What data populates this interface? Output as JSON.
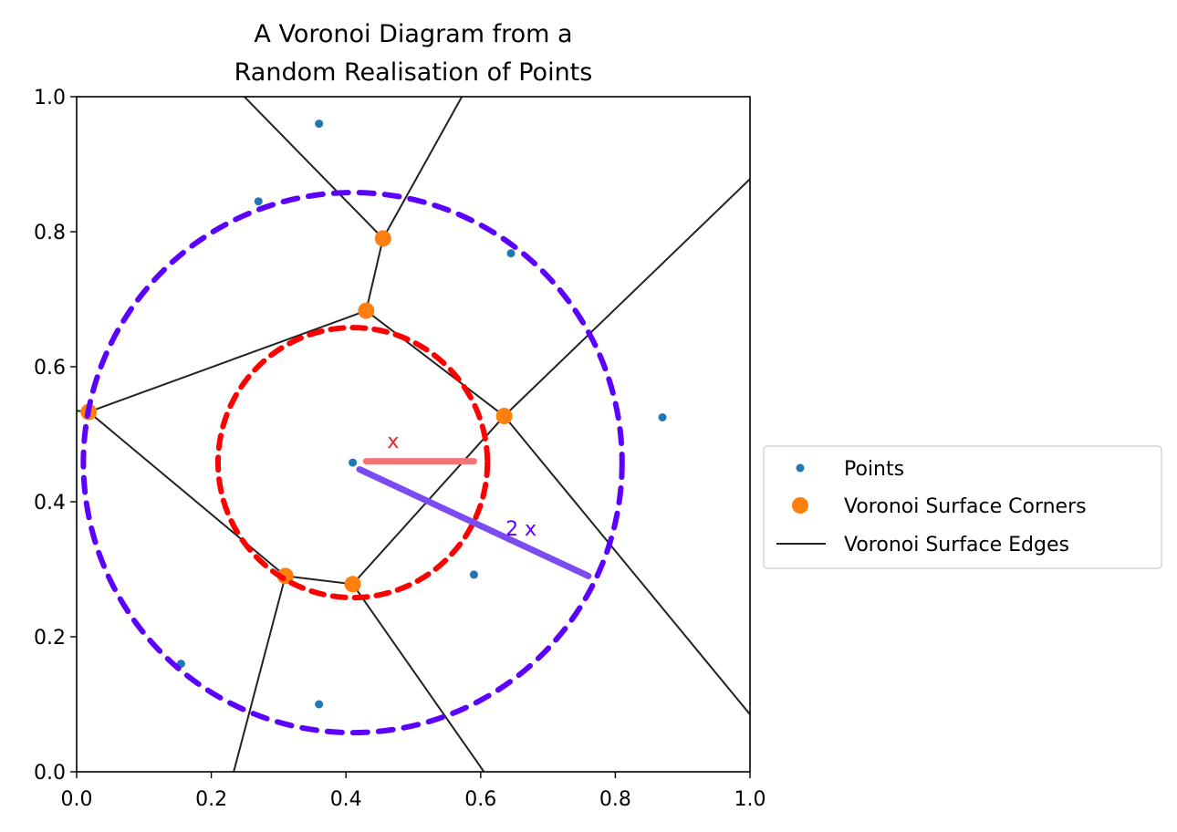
{
  "chart_data": {
    "type": "scatter",
    "title_lines": [
      "A Voronoi Diagram from a",
      "Random Realisation of Points"
    ],
    "xlim": [
      0.0,
      1.0
    ],
    "ylim": [
      0.0,
      1.0
    ],
    "x_ticks": [
      "0.0",
      "0.2",
      "0.4",
      "0.6",
      "0.8",
      "1.0"
    ],
    "y_ticks": [
      "0.0",
      "0.2",
      "0.4",
      "0.6",
      "0.8",
      "1.0"
    ],
    "grid": false,
    "legend_position": "right",
    "colors": {
      "points": "#1f77b4",
      "corners": "#ff7f0e",
      "edges": "#222222",
      "inner_circle": "#ff0000",
      "outer_circle": "#5c00ff",
      "x_bar": "#f27474",
      "x_label": "#e8232a",
      "two_x_bar": "#7a4cf2",
      "two_x_label": "#5c00ff"
    },
    "series": [
      {
        "name": "Points",
        "points": [
          [
            0.36,
            0.96
          ],
          [
            0.27,
            0.845
          ],
          [
            0.645,
            0.768
          ],
          [
            0.87,
            0.525
          ],
          [
            0.41,
            0.458
          ],
          [
            0.59,
            0.292
          ],
          [
            0.155,
            0.16
          ],
          [
            0.36,
            0.1
          ]
        ]
      },
      {
        "name": "Voronoi Surface Corners",
        "points": [
          [
            0.455,
            0.79
          ],
          [
            0.43,
            0.683
          ],
          [
            0.635,
            0.527
          ],
          [
            0.018,
            0.533
          ],
          [
            0.31,
            0.29
          ],
          [
            0.41,
            0.278
          ]
        ]
      },
      {
        "name": "Voronoi Surface Edges",
        "segments": [
          [
            [
              0.455,
              0.79
            ],
            [
              0.2,
              1.05
            ]
          ],
          [
            [
              0.455,
              0.79
            ],
            [
              0.6,
              1.05
            ]
          ],
          [
            [
              0.455,
              0.79
            ],
            [
              0.43,
              0.683
            ]
          ],
          [
            [
              0.43,
              0.683
            ],
            [
              0.635,
              0.527
            ]
          ],
          [
            [
              0.43,
              0.683
            ],
            [
              0.018,
              0.533
            ]
          ],
          [
            [
              0.635,
              0.527
            ],
            [
              1.0,
              0.878
            ]
          ],
          [
            [
              0.635,
              0.527
            ],
            [
              1.0,
              0.085
            ]
          ],
          [
            [
              0.635,
              0.527
            ],
            [
              0.41,
              0.278
            ]
          ],
          [
            [
              0.018,
              0.533
            ],
            [
              -0.05,
              0.54
            ]
          ],
          [
            [
              0.018,
              0.533
            ],
            [
              0.31,
              0.29
            ]
          ],
          [
            [
              0.31,
              0.29
            ],
            [
              0.41,
              0.278
            ]
          ],
          [
            [
              0.31,
              0.29
            ],
            [
              0.22,
              -0.05
            ]
          ],
          [
            [
              0.41,
              0.278
            ],
            [
              0.64,
              -0.05
            ]
          ]
        ]
      }
    ],
    "annotations": {
      "inner_circle": {
        "center": [
          0.41,
          0.458
        ],
        "radius": 0.2
      },
      "outer_circle": {
        "center": [
          0.41,
          0.458
        ],
        "radius": 0.4
      },
      "x_bar": {
        "from": [
          0.43,
          0.46
        ],
        "to": [
          0.59,
          0.46
        ],
        "label": "x",
        "label_at": [
          0.47,
          0.48
        ]
      },
      "two_x_bar": {
        "from": [
          0.42,
          0.448
        ],
        "to": [
          0.76,
          0.29
        ],
        "label": "2 x",
        "label_at": [
          0.66,
          0.35
        ]
      }
    }
  }
}
